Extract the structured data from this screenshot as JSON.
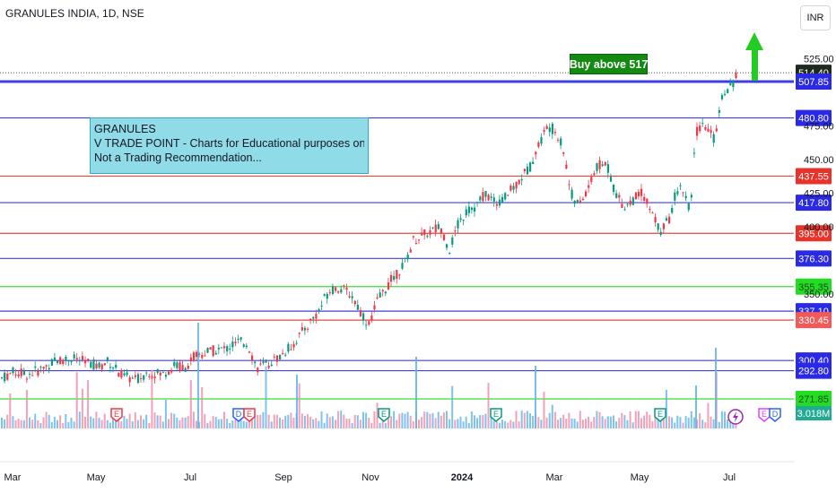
{
  "header": {
    "symbol_title": "GRANULES INDIA, 1D, NSE",
    "currency_button": "INR"
  },
  "annotations": {
    "note_lines": [
      "GRANULES",
      "V TRADE POINT - Charts for Educational purposes only.",
      "Not a Trading Recommendation..."
    ],
    "buy_label": "Buy above 517"
  },
  "colors": {
    "up": "#089981",
    "down": "#f23645",
    "blue_level": "#2a2ae6",
    "red_level": "#e8332b",
    "green_level": "#22dd22",
    "arrow": "#22cc22"
  },
  "chart_data": {
    "type": "candlestick",
    "title": "GRANULES INDIA, 1D, NSE",
    "y_range": [
      268,
      530
    ],
    "x_axis": [
      "Mar",
      "May",
      "Jul",
      "Sep",
      "Nov",
      "2024",
      "Mar",
      "May",
      "Jul"
    ],
    "y_ticks": [
      525.0,
      475.0,
      450.0,
      425.0,
      400.0,
      350.0
    ],
    "horizontal_levels": [
      {
        "value": 514.4,
        "label": "514.40",
        "kind": "last_price"
      },
      {
        "value": 507.85,
        "label": "507.85",
        "kind": "blue"
      },
      {
        "value": 480.8,
        "label": "480.80",
        "kind": "blue"
      },
      {
        "value": 437.55,
        "label": "437.55",
        "kind": "red"
      },
      {
        "value": 417.8,
        "label": "417.80",
        "kind": "blue"
      },
      {
        "value": 395.0,
        "label": "395.00",
        "kind": "red"
      },
      {
        "value": 376.3,
        "label": "376.30",
        "kind": "blue"
      },
      {
        "value": 355.35,
        "label": "355.35",
        "kind": "green"
      },
      {
        "value": 337.1,
        "label": "337.10",
        "kind": "blue"
      },
      {
        "value": 330.45,
        "label": "330.45",
        "kind": "red_outline"
      },
      {
        "value": 300.4,
        "label": "300.40",
        "kind": "blue"
      },
      {
        "value": 292.8,
        "label": "292.80",
        "kind": "blue"
      },
      {
        "value": 271.85,
        "label": "271.85",
        "kind": "green"
      }
    ],
    "volume_label": "3.018M",
    "price_path": [
      [
        0,
        287
      ],
      [
        15,
        292
      ],
      [
        30,
        290
      ],
      [
        45,
        294
      ],
      [
        60,
        300
      ],
      [
        80,
        302
      ],
      [
        95,
        299
      ],
      [
        110,
        296
      ],
      [
        120,
        300
      ],
      [
        135,
        289
      ],
      [
        150,
        286
      ],
      [
        165,
        292
      ],
      [
        180,
        290
      ],
      [
        195,
        297
      ],
      [
        205,
        295
      ],
      [
        215,
        303
      ],
      [
        230,
        307
      ],
      [
        250,
        309
      ],
      [
        265,
        314
      ],
      [
        275,
        313
      ],
      [
        285,
        295
      ],
      [
        295,
        297
      ],
      [
        310,
        303
      ],
      [
        325,
        312
      ],
      [
        340,
        325
      ],
      [
        355,
        338
      ],
      [
        365,
        352
      ],
      [
        375,
        355
      ],
      [
        390,
        350
      ],
      [
        400,
        338
      ],
      [
        410,
        327
      ],
      [
        420,
        345
      ],
      [
        435,
        360
      ],
      [
        450,
        372
      ],
      [
        460,
        390
      ],
      [
        475,
        395
      ],
      [
        490,
        400
      ],
      [
        500,
        383
      ],
      [
        510,
        402
      ],
      [
        520,
        412
      ],
      [
        530,
        415
      ],
      [
        540,
        425
      ],
      [
        550,
        418
      ],
      [
        560,
        420
      ],
      [
        575,
        432
      ],
      [
        590,
        445
      ],
      [
        600,
        462
      ],
      [
        610,
        475
      ],
      [
        620,
        470
      ],
      [
        628,
        455
      ],
      [
        635,
        425
      ],
      [
        645,
        415
      ],
      [
        655,
        430
      ],
      [
        665,
        445
      ],
      [
        675,
        447
      ],
      [
        685,
        425
      ],
      [
        695,
        415
      ],
      [
        705,
        420
      ],
      [
        715,
        426
      ],
      [
        725,
        410
      ],
      [
        735,
        397
      ],
      [
        745,
        405
      ],
      [
        752,
        425
      ],
      [
        760,
        430
      ],
      [
        768,
        410
      ],
      [
        775,
        470
      ],
      [
        785,
        475
      ],
      [
        795,
        465
      ],
      [
        805,
        500
      ],
      [
        815,
        505
      ],
      [
        820,
        514
      ]
    ],
    "event_markers": [
      "E",
      "D",
      "E",
      "E",
      "E",
      "E",
      "E",
      "D"
    ]
  }
}
